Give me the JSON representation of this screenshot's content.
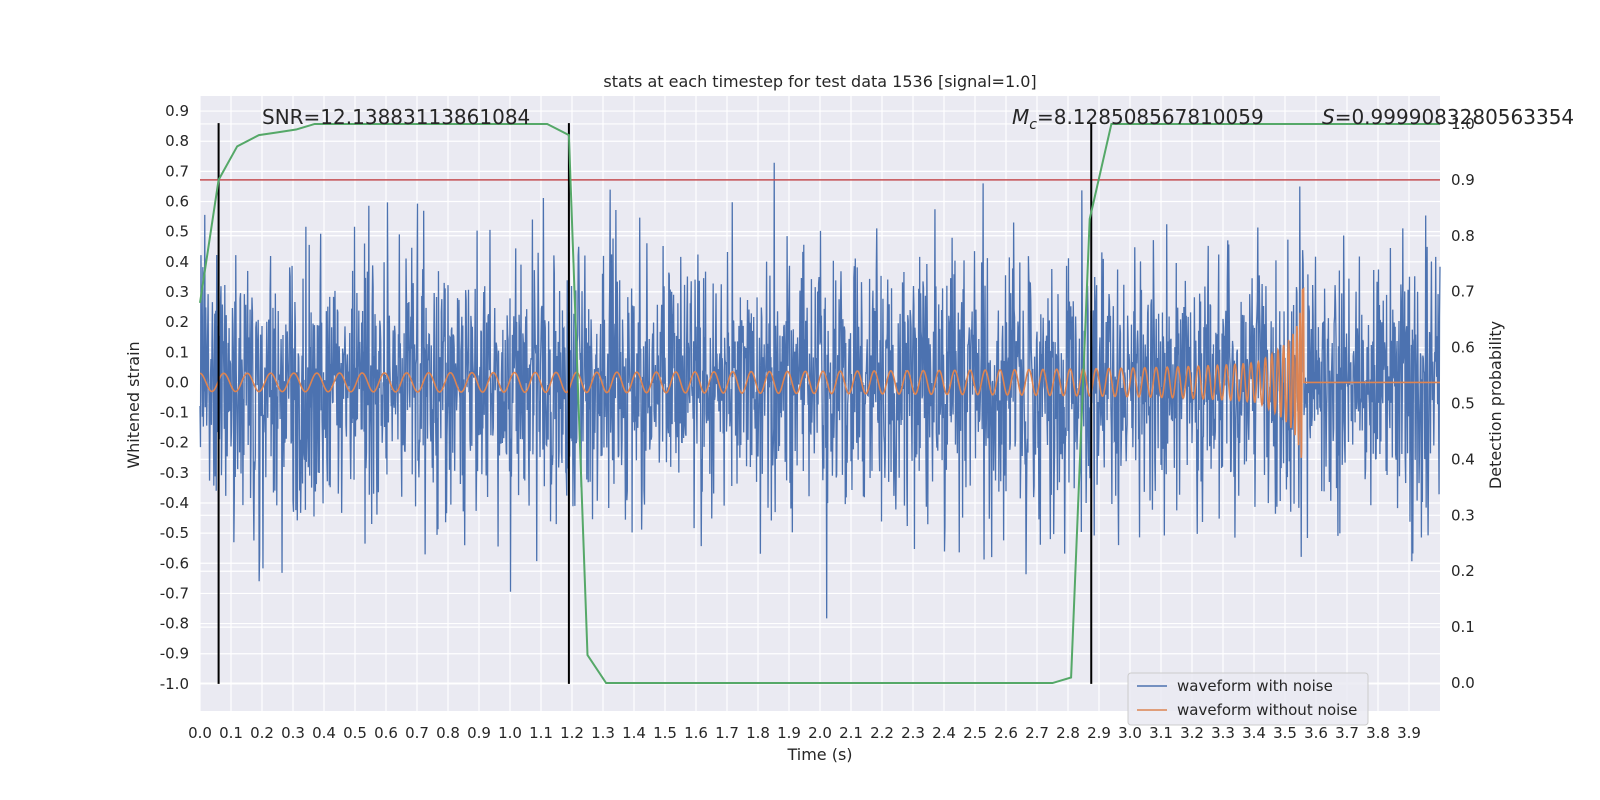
{
  "chart_data": {
    "type": "line",
    "title": "stats at each timestep for test data 1536 [signal=1.0]",
    "xlabel": "Time (s)",
    "ylabel": "Whitened strain",
    "y2label": "Detection probability",
    "xlim": [
      0.0,
      4.0
    ],
    "ylim": [
      -1.09,
      0.95
    ],
    "y2lim": [
      -0.05,
      1.05
    ],
    "xticks": [
      "0.0",
      "0.1",
      "0.2",
      "0.3",
      "0.4",
      "0.5",
      "0.6",
      "0.7",
      "0.8",
      "0.9",
      "1.0",
      "1.1",
      "1.2",
      "1.3",
      "1.4",
      "1.5",
      "1.6",
      "1.7",
      "1.8",
      "1.9",
      "2.0",
      "2.1",
      "2.2",
      "2.3",
      "2.4",
      "2.5",
      "2.6",
      "2.7",
      "2.8",
      "2.9",
      "3.0",
      "3.1",
      "3.2",
      "3.3",
      "3.4",
      "3.5",
      "3.6",
      "3.7",
      "3.8",
      "3.9"
    ],
    "yticks": [
      "0.9",
      "0.8",
      "0.7",
      "0.6",
      "0.5",
      "0.4",
      "0.3",
      "0.2",
      "0.1",
      "0.0",
      "-0.1",
      "-0.2",
      "-0.3",
      "-0.4",
      "-0.5",
      "-0.6",
      "-0.7",
      "-0.8",
      "-0.9",
      "-1.0"
    ],
    "y2ticks": [
      "1.0",
      "0.9",
      "0.8",
      "0.7",
      "0.6",
      "0.5",
      "0.4",
      "0.3",
      "0.2",
      "0.1",
      "0.0"
    ],
    "grid": true,
    "legend_position": "lower-right",
    "annotations": {
      "snr": "SNR=12.13883113861084",
      "mc_symbol": "M",
      "mc_sub": "c",
      "mc_value": "=8.128508567810059",
      "s_symbol": "S",
      "s_value": "=0.9999083280563354"
    },
    "series": [
      {
        "name": "waveform with noise",
        "color": "#4c72b0",
        "axis": "left",
        "kind": "noise",
        "amplitude_sigma": 0.22,
        "range": [
          -0.98,
          0.85
        ]
      },
      {
        "name": "waveform without noise",
        "color": "#dd8452",
        "axis": "left",
        "kind": "chirp",
        "start_amplitude": 0.03,
        "peak_amplitude": 0.37,
        "merger_time": 3.56
      },
      {
        "name": "detection probability",
        "color": "#55a868",
        "axis": "right",
        "x": [
          0.0,
          0.06,
          0.12,
          0.19,
          0.25,
          0.31,
          0.37,
          0.44,
          0.5,
          0.6,
          0.8,
          1.0,
          1.12,
          1.19,
          1.25,
          1.31,
          1.37,
          1.44,
          1.6,
          2.0,
          2.4,
          2.62,
          2.75,
          2.81,
          2.87,
          2.94,
          3.0,
          3.5,
          4.0
        ],
        "y": [
          0.68,
          0.9,
          0.96,
          0.98,
          0.985,
          0.99,
          1.0,
          1.0,
          1.0,
          1.0,
          1.0,
          1.0,
          1.0,
          0.98,
          0.05,
          0.0,
          0.0,
          0.0,
          0.0,
          0.0,
          0.0,
          0.0,
          0.0,
          0.01,
          0.83,
          1.0,
          1.0,
          1.0,
          1.0
        ]
      }
    ],
    "threshold_line": {
      "value": 0.9,
      "axis": "right",
      "color": "#c44e52"
    },
    "vertical_lines": {
      "x": [
        0.06,
        1.19,
        2.875
      ],
      "y_range": [
        -1.0,
        0.86
      ],
      "color": "#000000"
    }
  }
}
